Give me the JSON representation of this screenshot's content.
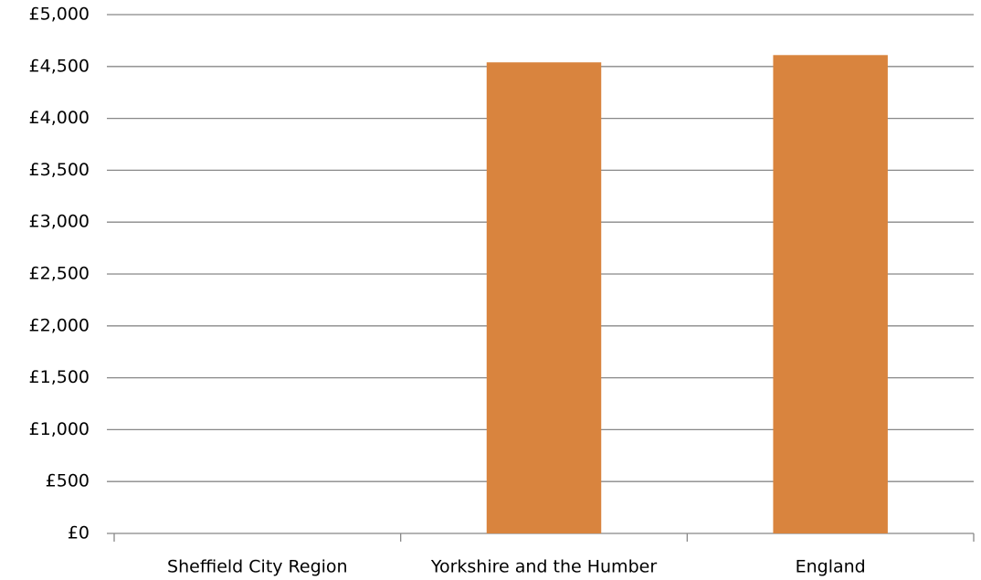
{
  "chart_data": {
    "type": "bar",
    "categories": [
      "Sheffield City Region",
      "Yorkshire and the Humber",
      "England"
    ],
    "values": [
      null,
      4540,
      4610
    ],
    "color": "#d9843e",
    "ylim": [
      0,
      5000
    ],
    "yticks": [
      {
        "value": 0,
        "label": "£0"
      },
      {
        "value": 500,
        "label": "£500"
      },
      {
        "value": 1000,
        "label": "£1,000"
      },
      {
        "value": 1500,
        "label": "£1,500"
      },
      {
        "value": 2000,
        "label": "£2,000"
      },
      {
        "value": 2500,
        "label": "£2,500"
      },
      {
        "value": 3000,
        "label": "£3,000"
      },
      {
        "value": 3500,
        "label": "£3,500"
      },
      {
        "value": 4000,
        "label": "£4,000"
      },
      {
        "value": 4500,
        "label": "£4,500"
      },
      {
        "value": 5000,
        "label": "£5,000"
      }
    ],
    "grid": true
  }
}
